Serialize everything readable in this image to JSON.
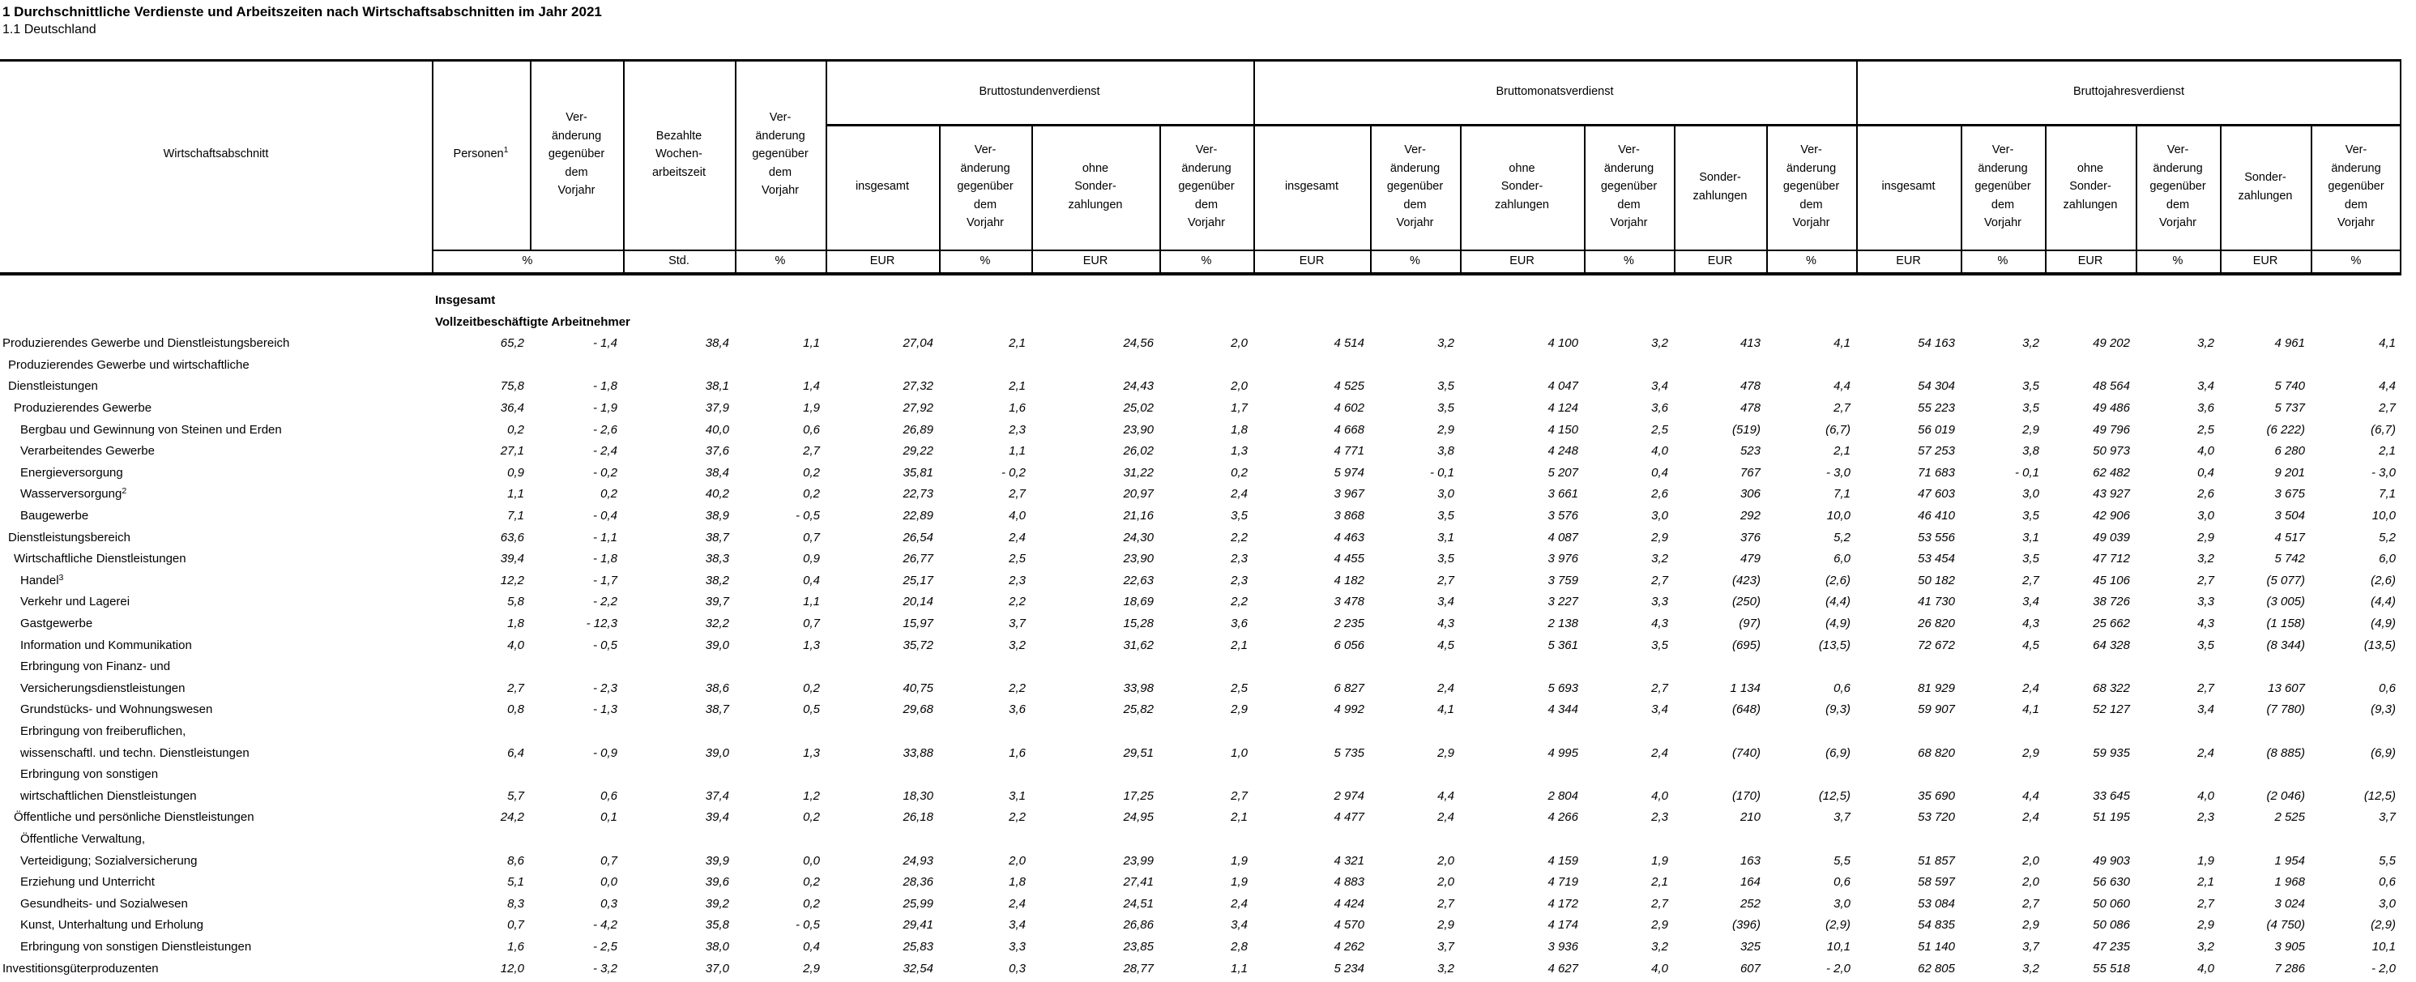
{
  "title": "1 Durchschnittliche Verdienste und Arbeitszeiten nach Wirtschaftsabschnitten im Jahr 2021",
  "subtitle": "1.1 Deutschland",
  "table": {
    "row_header": "Wirtschaftsabschnitt",
    "units": {
      "merged_percent": "%"
    },
    "top_columns": [
      {
        "label": "Personen",
        "sup": "1",
        "unit": ""
      },
      {
        "label": "Ver-\nänderung\ngegenüber\ndem\nVorjahr",
        "unit": ""
      },
      {
        "label": "Bezahlte\nWochen-\narbeitszeit",
        "unit": "Std."
      },
      {
        "label": "Ver-\nänderung\ngegenüber\ndem\nVorjahr",
        "unit": "%"
      }
    ],
    "groups": [
      {
        "label": "Bruttostundenverdienst",
        "columns": [
          {
            "label": "insgesamt",
            "unit": "EUR"
          },
          {
            "label": "Ver-\nänderung\ngegenüber\ndem\nVorjahr",
            "unit": "%"
          },
          {
            "label": "ohne\nSonder-\nzahlungen",
            "unit": "EUR"
          },
          {
            "label": "Ver-\nänderung\ngegenüber\ndem\nVorjahr",
            "unit": "%"
          }
        ]
      },
      {
        "label": "Bruttomonatsverdienst",
        "columns": [
          {
            "label": "insgesamt",
            "unit": "EUR"
          },
          {
            "label": "Ver-\nänderung\ngegenüber\ndem\nVorjahr",
            "unit": "%"
          },
          {
            "label": "ohne\nSonder-\nzahlungen",
            "unit": "EUR"
          },
          {
            "label": "Ver-\nänderung\ngegenüber\ndem\nVorjahr",
            "unit": "%"
          },
          {
            "label": "Sonder-\nzahlungen",
            "unit": "EUR"
          },
          {
            "label": "Ver-\nänderung\ngegenüber\ndem\nVorjahr",
            "unit": "%"
          }
        ]
      },
      {
        "label": "Bruttojahresverdienst",
        "columns": [
          {
            "label": "insgesamt",
            "unit": "EUR"
          },
          {
            "label": "Ver-\nänderung\ngegenüber\ndem\nVorjahr",
            "unit": "%"
          },
          {
            "label": "ohne\nSonder-\nzahlungen",
            "unit": "EUR"
          },
          {
            "label": "Ver-\nänderung\ngegenüber\ndem\nVorjahr",
            "unit": "%"
          },
          {
            "label": "Sonder-\nzahlungen",
            "unit": "EUR"
          },
          {
            "label": "Ver-\nänderung\ngegenüber\ndem\nVorjahr",
            "unit": "%"
          }
        ]
      }
    ],
    "rows": [
      {
        "label": "Insgesamt",
        "type": "section"
      },
      {
        "label": "Vollzeitbeschäftigte Arbeitnehmer",
        "type": "section"
      },
      {
        "label": "Produzierendes Gewerbe und Dienstleistungsbereich",
        "indent": 0,
        "values": [
          "65,2",
          "- 1,4",
          "38,4",
          "1,1",
          "27,04",
          "2,1",
          "24,56",
          "2,0",
          "4 514",
          "3,2",
          "4 100",
          "3,2",
          "413",
          "4,1",
          "54 163",
          "3,2",
          "49 202",
          "3,2",
          "4 961",
          "4,1"
        ]
      },
      {
        "label": "Produzierendes Gewerbe und wirtschaftliche",
        "indent": 1
      },
      {
        "label": "Dienstleistungen",
        "indent": 1,
        "values": [
          "75,8",
          "- 1,8",
          "38,1",
          "1,4",
          "27,32",
          "2,1",
          "24,43",
          "2,0",
          "4 525",
          "3,5",
          "4 047",
          "3,4",
          "478",
          "4,4",
          "54 304",
          "3,5",
          "48 564",
          "3,4",
          "5 740",
          "4,4"
        ]
      },
      {
        "label": "Produzierendes Gewerbe",
        "indent": 2,
        "values": [
          "36,4",
          "- 1,9",
          "37,9",
          "1,9",
          "27,92",
          "1,6",
          "25,02",
          "1,7",
          "4 602",
          "3,5",
          "4 124",
          "3,6",
          "478",
          "2,7",
          "55 223",
          "3,5",
          "49 486",
          "3,6",
          "5 737",
          "2,7"
        ]
      },
      {
        "label": "Bergbau und Gewinnung von Steinen und Erden",
        "indent": 3,
        "values": [
          "0,2",
          "- 2,6",
          "40,0",
          "0,6",
          "26,89",
          "2,3",
          "23,90",
          "1,8",
          "4 668",
          "2,9",
          "4 150",
          "2,5",
          "(519)",
          "(6,7)",
          "56 019",
          "2,9",
          "49 796",
          "2,5",
          "(6 222)",
          "(6,7)"
        ]
      },
      {
        "label": "Verarbeitendes Gewerbe",
        "indent": 3,
        "values": [
          "27,1",
          "- 2,4",
          "37,6",
          "2,7",
          "29,22",
          "1,1",
          "26,02",
          "1,3",
          "4 771",
          "3,8",
          "4 248",
          "4,0",
          "523",
          "2,1",
          "57 253",
          "3,8",
          "50 973",
          "4,0",
          "6 280",
          "2,1"
        ]
      },
      {
        "label": "Energieversorgung",
        "indent": 3,
        "values": [
          "0,9",
          "- 0,2",
          "38,4",
          "0,2",
          "35,81",
          "- 0,2",
          "31,22",
          "0,2",
          "5 974",
          "- 0,1",
          "5 207",
          "0,4",
          "767",
          "- 3,0",
          "71 683",
          "- 0,1",
          "62 482",
          "0,4",
          "9 201",
          "- 3,0"
        ]
      },
      {
        "label": "Wasserversorgung",
        "sup": "2",
        "indent": 3,
        "values": [
          "1,1",
          "0,2",
          "40,2",
          "0,2",
          "22,73",
          "2,7",
          "20,97",
          "2,4",
          "3 967",
          "3,0",
          "3 661",
          "2,6",
          "306",
          "7,1",
          "47 603",
          "3,0",
          "43 927",
          "2,6",
          "3 675",
          "7,1"
        ]
      },
      {
        "label": "Baugewerbe",
        "indent": 3,
        "values": [
          "7,1",
          "- 0,4",
          "38,9",
          "- 0,5",
          "22,89",
          "4,0",
          "21,16",
          "3,5",
          "3 868",
          "3,5",
          "3 576",
          "3,0",
          "292",
          "10,0",
          "46 410",
          "3,5",
          "42 906",
          "3,0",
          "3 504",
          "10,0"
        ]
      },
      {
        "label": "Dienstleistungsbereich",
        "indent": 1,
        "values": [
          "63,6",
          "- 1,1",
          "38,7",
          "0,7",
          "26,54",
          "2,4",
          "24,30",
          "2,2",
          "4 463",
          "3,1",
          "4 087",
          "2,9",
          "376",
          "5,2",
          "53 556",
          "3,1",
          "49 039",
          "2,9",
          "4 517",
          "5,2"
        ]
      },
      {
        "label": "Wirtschaftliche Dienstleistungen",
        "indent": 2,
        "values": [
          "39,4",
          "- 1,8",
          "38,3",
          "0,9",
          "26,77",
          "2,5",
          "23,90",
          "2,3",
          "4 455",
          "3,5",
          "3 976",
          "3,2",
          "479",
          "6,0",
          "53 454",
          "3,5",
          "47 712",
          "3,2",
          "5 742",
          "6,0"
        ]
      },
      {
        "label": "Handel",
        "sup": "3",
        "indent": 3,
        "values": [
          "12,2",
          "- 1,7",
          "38,2",
          "0,4",
          "25,17",
          "2,3",
          "22,63",
          "2,3",
          "4 182",
          "2,7",
          "3 759",
          "2,7",
          "(423)",
          "(2,6)",
          "50 182",
          "2,7",
          "45 106",
          "2,7",
          "(5 077)",
          "(2,6)"
        ]
      },
      {
        "label": "Verkehr und Lagerei",
        "indent": 3,
        "values": [
          "5,8",
          "- 2,2",
          "39,7",
          "1,1",
          "20,14",
          "2,2",
          "18,69",
          "2,2",
          "3 478",
          "3,4",
          "3 227",
          "3,3",
          "(250)",
          "(4,4)",
          "41 730",
          "3,4",
          "38 726",
          "3,3",
          "(3 005)",
          "(4,4)"
        ]
      },
      {
        "label": "Gastgewerbe",
        "indent": 3,
        "values": [
          "1,8",
          "- 12,3",
          "32,2",
          "0,7",
          "15,97",
          "3,7",
          "15,28",
          "3,6",
          "2 235",
          "4,3",
          "2 138",
          "4,3",
          "(97)",
          "(4,9)",
          "26 820",
          "4,3",
          "25 662",
          "4,3",
          "(1 158)",
          "(4,9)"
        ]
      },
      {
        "label": "Information und Kommunikation",
        "indent": 3,
        "values": [
          "4,0",
          "- 0,5",
          "39,0",
          "1,3",
          "35,72",
          "3,2",
          "31,62",
          "2,1",
          "6 056",
          "4,5",
          "5 361",
          "3,5",
          "(695)",
          "(13,5)",
          "72 672",
          "4,5",
          "64 328",
          "3,5",
          "(8 344)",
          "(13,5)"
        ]
      },
      {
        "label": "Erbringung von Finanz- und",
        "indent": 3
      },
      {
        "label": "Versicherungsdienstleistungen",
        "indent": 3,
        "values": [
          "2,7",
          "- 2,3",
          "38,6",
          "0,2",
          "40,75",
          "2,2",
          "33,98",
          "2,5",
          "6 827",
          "2,4",
          "5 693",
          "2,7",
          "1 134",
          "0,6",
          "81 929",
          "2,4",
          "68 322",
          "2,7",
          "13 607",
          "0,6"
        ]
      },
      {
        "label": "Grundstücks- und Wohnungswesen",
        "indent": 3,
        "values": [
          "0,8",
          "- 1,3",
          "38,7",
          "0,5",
          "29,68",
          "3,6",
          "25,82",
          "2,9",
          "4 992",
          "4,1",
          "4 344",
          "3,4",
          "(648)",
          "(9,3)",
          "59 907",
          "4,1",
          "52 127",
          "3,4",
          "(7 780)",
          "(9,3)"
        ]
      },
      {
        "label": "Erbringung von freiberuflichen,",
        "indent": 3
      },
      {
        "label": "wissenschaftl. und techn. Dienstleistungen",
        "indent": 3,
        "values": [
          "6,4",
          "- 0,9",
          "39,0",
          "1,3",
          "33,88",
          "1,6",
          "29,51",
          "1,0",
          "5 735",
          "2,9",
          "4 995",
          "2,4",
          "(740)",
          "(6,9)",
          "68 820",
          "2,9",
          "59 935",
          "2,4",
          "(8 885)",
          "(6,9)"
        ]
      },
      {
        "label": "Erbringung von sonstigen",
        "indent": 3
      },
      {
        "label": "wirtschaftlichen Dienstleistungen",
        "indent": 3,
        "values": [
          "5,7",
          "0,6",
          "37,4",
          "1,2",
          "18,30",
          "3,1",
          "17,25",
          "2,7",
          "2 974",
          "4,4",
          "2 804",
          "4,0",
          "(170)",
          "(12,5)",
          "35 690",
          "4,4",
          "33 645",
          "4,0",
          "(2 046)",
          "(12,5)"
        ]
      },
      {
        "label": "Öffentliche und persönliche Dienstleistungen",
        "indent": 2,
        "values": [
          "24,2",
          "0,1",
          "39,4",
          "0,2",
          "26,18",
          "2,2",
          "24,95",
          "2,1",
          "4 477",
          "2,4",
          "4 266",
          "2,3",
          "210",
          "3,7",
          "53 720",
          "2,4",
          "51 195",
          "2,3",
          "2 525",
          "3,7"
        ]
      },
      {
        "label": "Öffentliche Verwaltung,",
        "indent": 3
      },
      {
        "label": "Verteidigung; Sozialversicherung",
        "indent": 3,
        "values": [
          "8,6",
          "0,7",
          "39,9",
          "0,0",
          "24,93",
          "2,0",
          "23,99",
          "1,9",
          "4 321",
          "2,0",
          "4 159",
          "1,9",
          "163",
          "5,5",
          "51 857",
          "2,0",
          "49 903",
          "1,9",
          "1 954",
          "5,5"
        ]
      },
      {
        "label": "Erziehung und Unterricht",
        "indent": 3,
        "values": [
          "5,1",
          "0,0",
          "39,6",
          "0,2",
          "28,36",
          "1,8",
          "27,41",
          "1,9",
          "4 883",
          "2,0",
          "4 719",
          "2,1",
          "164",
          "0,6",
          "58 597",
          "2,0",
          "56 630",
          "2,1",
          "1 968",
          "0,6"
        ]
      },
      {
        "label": "Gesundheits- und Sozialwesen",
        "indent": 3,
        "values": [
          "8,3",
          "0,3",
          "39,2",
          "0,2",
          "25,99",
          "2,4",
          "24,51",
          "2,4",
          "4 424",
          "2,7",
          "4 172",
          "2,7",
          "252",
          "3,0",
          "53 084",
          "2,7",
          "50 060",
          "2,7",
          "3 024",
          "3,0"
        ]
      },
      {
        "label": "Kunst, Unterhaltung und Erholung",
        "indent": 3,
        "values": [
          "0,7",
          "- 4,2",
          "35,8",
          "- 0,5",
          "29,41",
          "3,4",
          "26,86",
          "3,4",
          "4 570",
          "2,9",
          "4 174",
          "2,9",
          "(396)",
          "(2,9)",
          "54 835",
          "2,9",
          "50 086",
          "2,9",
          "(4 750)",
          "(2,9)"
        ]
      },
      {
        "label": "Erbringung von sonstigen Dienstleistungen",
        "indent": 3,
        "values": [
          "1,6",
          "- 2,5",
          "38,0",
          "0,4",
          "25,83",
          "3,3",
          "23,85",
          "2,8",
          "4 262",
          "3,7",
          "3 936",
          "3,2",
          "325",
          "10,1",
          "51 140",
          "3,7",
          "47 235",
          "3,2",
          "3 905",
          "10,1"
        ]
      },
      {
        "label": "Investitionsgüterproduzenten",
        "indent": 0,
        "values": [
          "12,0",
          "- 3,2",
          "37,0",
          "2,9",
          "32,54",
          "0,3",
          "28,77",
          "1,1",
          "5 234",
          "3,2",
          "4 627",
          "4,0",
          "607",
          "- 2,0",
          "62 805",
          "3,2",
          "55 518",
          "4,0",
          "7 286",
          "- 2,0"
        ]
      }
    ]
  }
}
